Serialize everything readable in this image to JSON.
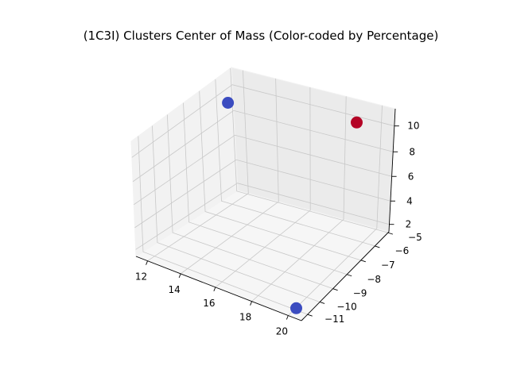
{
  "chart_data": {
    "type": "scatter",
    "projection": "3d",
    "title": "(1C3I) Clusters Center of Mass (Color-coded by Percentage)",
    "xlabel": "",
    "ylabel": "",
    "zlabel": "",
    "grid": true,
    "x_ticks": [
      "12",
      "14",
      "16",
      "18",
      "20"
    ],
    "y_ticks": [
      "−11",
      "−10",
      "−9",
      "−8",
      "−7",
      "−6",
      "−5"
    ],
    "z_ticks": [
      "2",
      "4",
      "6",
      "8",
      "10"
    ],
    "colormap": "coolwarm",
    "points": [
      {
        "x": 12.5,
        "y": -6.5,
        "z": 9.5,
        "color": "#3b4cc0"
      },
      {
        "x": 19.8,
        "y": -11.0,
        "z": 1.5,
        "color": "#3b4cc0"
      },
      {
        "x": 18.2,
        "y": -5.2,
        "z": 10.2,
        "color": "#b40426"
      }
    ]
  }
}
